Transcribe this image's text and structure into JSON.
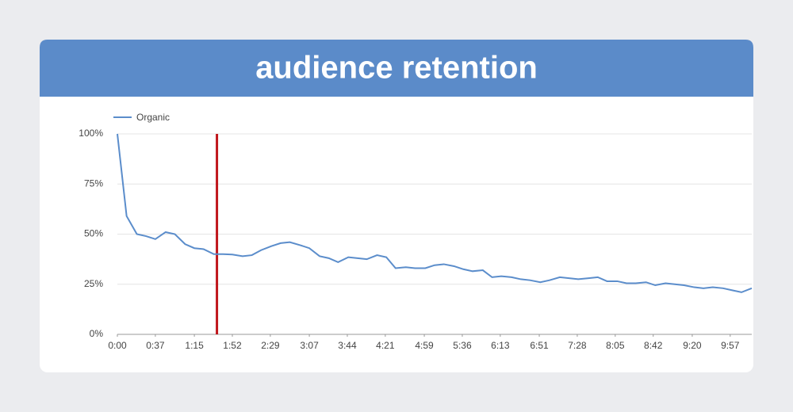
{
  "chart_data": {
    "type": "line",
    "title": "audience retention",
    "x": [
      0,
      9,
      19,
      28,
      37,
      47,
      56,
      66,
      75,
      84,
      94,
      103,
      112,
      122,
      131,
      140,
      150,
      159,
      168,
      178,
      187,
      197,
      206,
      215,
      225,
      234,
      243,
      253,
      262,
      271,
      281,
      290,
      300,
      309,
      318,
      328,
      337,
      346,
      356,
      365,
      374,
      384,
      393,
      402,
      412,
      421,
      431,
      440,
      449,
      459,
      468,
      477,
      487,
      496,
      505,
      515,
      524,
      534,
      543,
      552,
      562,
      571,
      580,
      590,
      599,
      608,
      618
    ],
    "series": [
      {
        "name": "Organic",
        "color": "#5b8dcb",
        "values": [
          100,
          59,
          50,
          49,
          47.5,
          51,
          50,
          45,
          43,
          42.5,
          40,
          40,
          39.8,
          39,
          39.5,
          42,
          44,
          45.5,
          46,
          44.5,
          43,
          39,
          38,
          36,
          38.5,
          38,
          37.5,
          39.5,
          38.5,
          33,
          33.5,
          33,
          33,
          34.5,
          35,
          34,
          32.5,
          31.5,
          32,
          28.5,
          29,
          28.5,
          27.5,
          27,
          26,
          27,
          28.5,
          28,
          27.5,
          28,
          28.5,
          26.5,
          26.5,
          25.5,
          25.5,
          26,
          24.5,
          25.5,
          25,
          24.5,
          23.5,
          23,
          23.5,
          23,
          22,
          21,
          23
        ]
      }
    ],
    "xlim": [
      0,
      618
    ],
    "xticks": [
      {
        "value": 0,
        "label": "0:00"
      },
      {
        "value": 37,
        "label": "0:37"
      },
      {
        "value": 75,
        "label": "1:15"
      },
      {
        "value": 112,
        "label": "1:52"
      },
      {
        "value": 149,
        "label": "2:29"
      },
      {
        "value": 187,
        "label": "3:07"
      },
      {
        "value": 224,
        "label": "3:44"
      },
      {
        "value": 261,
        "label": "4:21"
      },
      {
        "value": 299,
        "label": "4:59"
      },
      {
        "value": 336,
        "label": "5:36"
      },
      {
        "value": 373,
        "label": "6:13"
      },
      {
        "value": 411,
        "label": "6:51"
      },
      {
        "value": 448,
        "label": "7:28"
      },
      {
        "value": 485,
        "label": "8:05"
      },
      {
        "value": 522,
        "label": "8:42"
      },
      {
        "value": 560,
        "label": "9:20"
      },
      {
        "value": 597,
        "label": "9:57"
      }
    ],
    "ylim": [
      0,
      100
    ],
    "yticks": [
      {
        "value": 0,
        "label": "0%"
      },
      {
        "value": 25,
        "label": "25%"
      },
      {
        "value": 50,
        "label": "50%"
      },
      {
        "value": 75,
        "label": "75%"
      },
      {
        "value": 100,
        "label": "100%"
      }
    ],
    "grid": true,
    "legend": "top-left",
    "marker": {
      "x": 97,
      "color": "#c0161b"
    }
  }
}
